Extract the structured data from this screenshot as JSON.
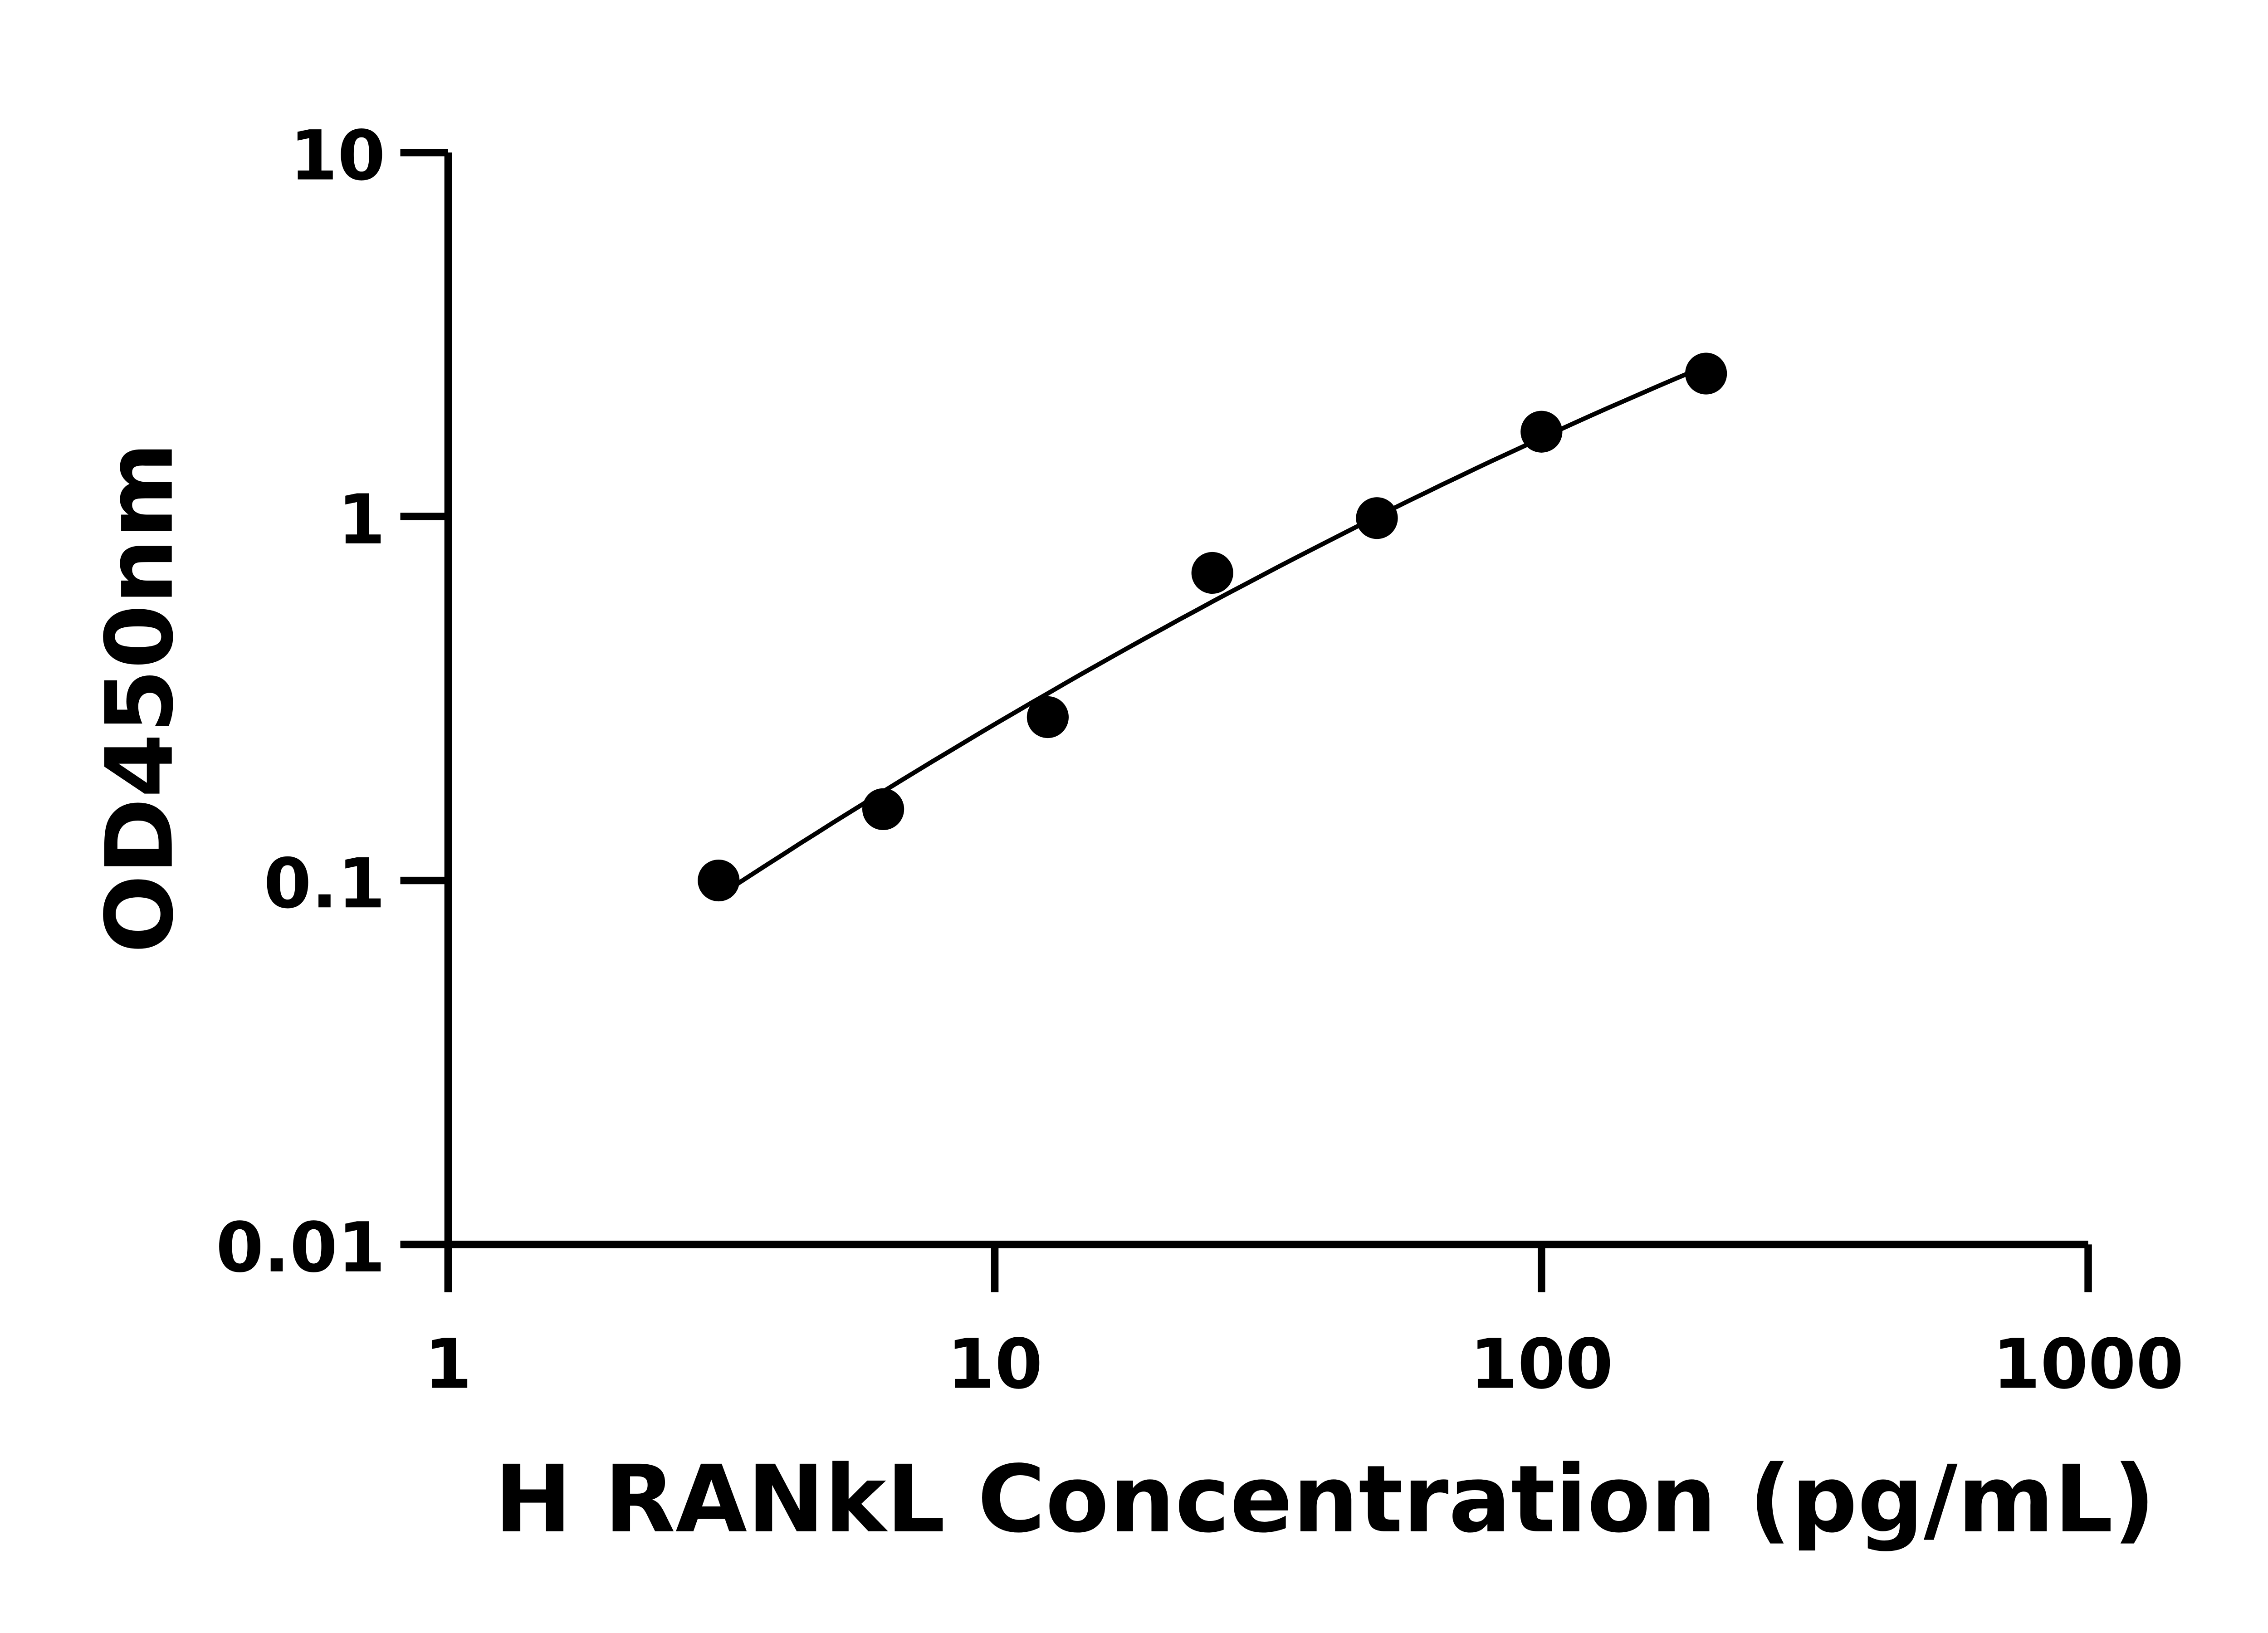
{
  "chart_data": {
    "type": "scatter",
    "title": "",
    "xlabel": "H RANkL Concentration (pg/mL)",
    "ylabel": "OD450nm",
    "xscale": "log",
    "yscale": "log",
    "xlim": [
      1,
      1000
    ],
    "ylim": [
      0.01,
      10
    ],
    "xticks": [
      "1",
      "10",
      "100",
      "1000"
    ],
    "yticks": [
      "0.01",
      "0.1",
      "1",
      "10"
    ],
    "grid": false,
    "legend": "none",
    "fit_line": true,
    "color": "#000000",
    "series": [
      {
        "x": [
          3.125,
          6.25,
          12.5,
          25,
          50,
          100,
          200
        ],
        "y": [
          0.1,
          0.157,
          0.281,
          0.7,
          0.99,
          1.71,
          2.47
        ]
      }
    ]
  }
}
